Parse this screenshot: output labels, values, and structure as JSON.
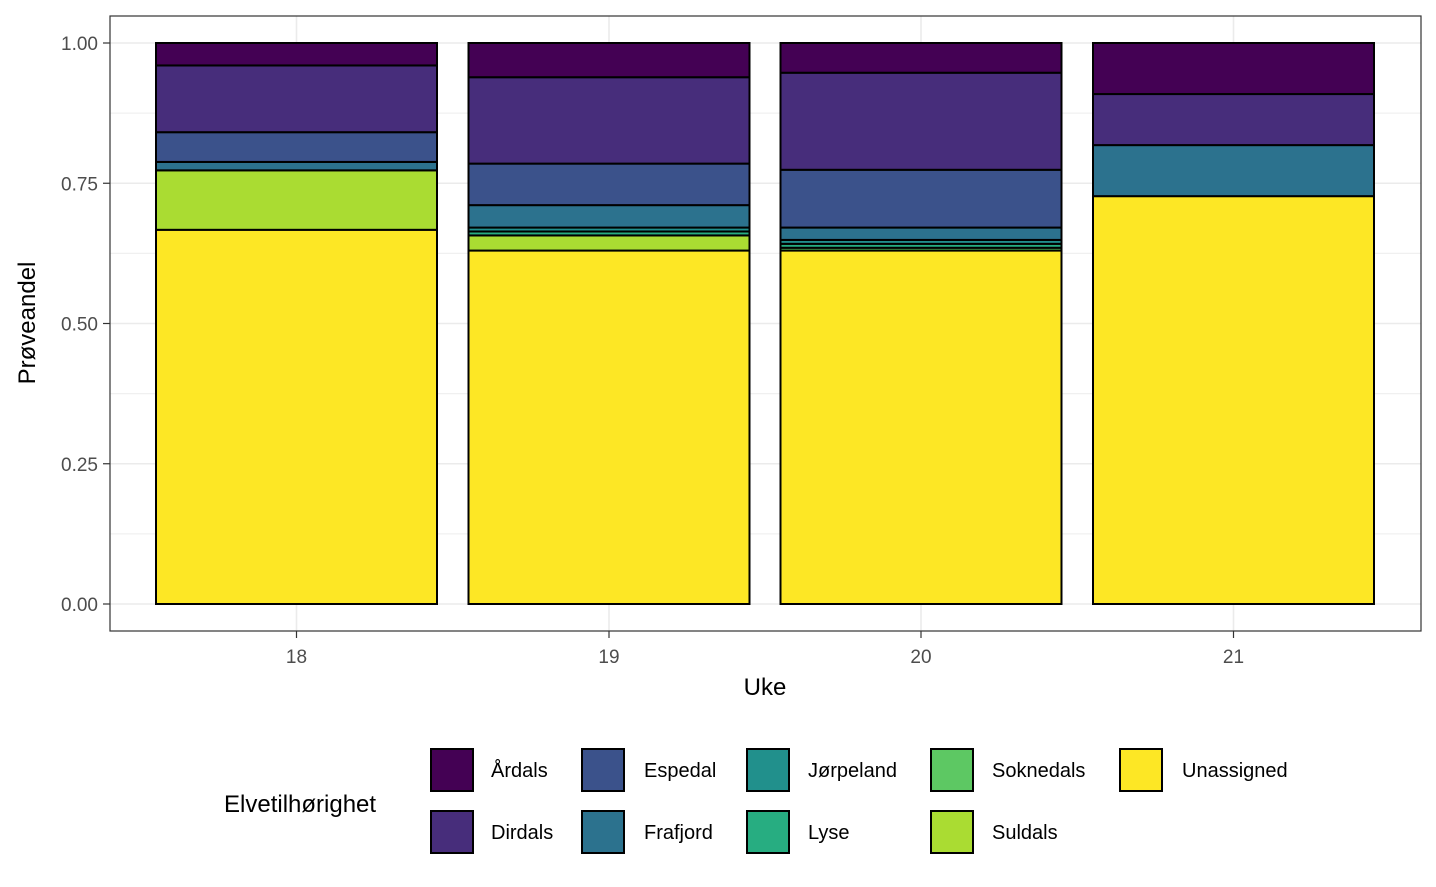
{
  "chart_data": {
    "type": "bar",
    "stacked": true,
    "title": "",
    "xlabel": "Uke",
    "ylabel": "Prøveandel",
    "ylim": [
      0,
      1
    ],
    "y_ticks": [
      "0.00",
      "0.25",
      "0.50",
      "0.75",
      "1.00"
    ],
    "y_tick_values": [
      0,
      0.25,
      0.5,
      0.75,
      1.0
    ],
    "categories": [
      "18",
      "19",
      "20",
      "21"
    ],
    "legend_title": "Elvetilhørighet",
    "legend_position": "bottom",
    "series": [
      {
        "name": "Unassigned",
        "color": "#FDE725",
        "values": [
          0.667,
          0.63,
          0.63,
          0.727
        ]
      },
      {
        "name": "Suldals",
        "color": "#AADC32",
        "values": [
          0.106,
          0.027,
          0.0,
          0.0
        ]
      },
      {
        "name": "Soknedals",
        "color": "#5DC863",
        "values": [
          0.0,
          0.0,
          0.005,
          0.0
        ]
      },
      {
        "name": "Lyse",
        "color": "#27AD81",
        "values": [
          0.0,
          0.007,
          0.007,
          0.0
        ]
      },
      {
        "name": "Jørpeland",
        "color": "#21908C",
        "values": [
          0.0,
          0.007,
          0.007,
          0.0
        ]
      },
      {
        "name": "Frafjord",
        "color": "#2C728E",
        "values": [
          0.015,
          0.04,
          0.022,
          0.091
        ]
      },
      {
        "name": "Espedal",
        "color": "#3B528B",
        "values": [
          0.053,
          0.074,
          0.103,
          0.0
        ]
      },
      {
        "name": "Dirdals",
        "color": "#472D7B",
        "values": [
          0.119,
          0.154,
          0.173,
          0.091
        ]
      },
      {
        "name": "Årdals",
        "color": "#440154",
        "values": [
          0.04,
          0.061,
          0.053,
          0.091
        ]
      }
    ],
    "legend_order": [
      "Årdals",
      "Dirdals",
      "Espedal",
      "Frafjord",
      "Jørpeland",
      "Lyse",
      "Soknedals",
      "Suldals",
      "Unassigned"
    ]
  }
}
